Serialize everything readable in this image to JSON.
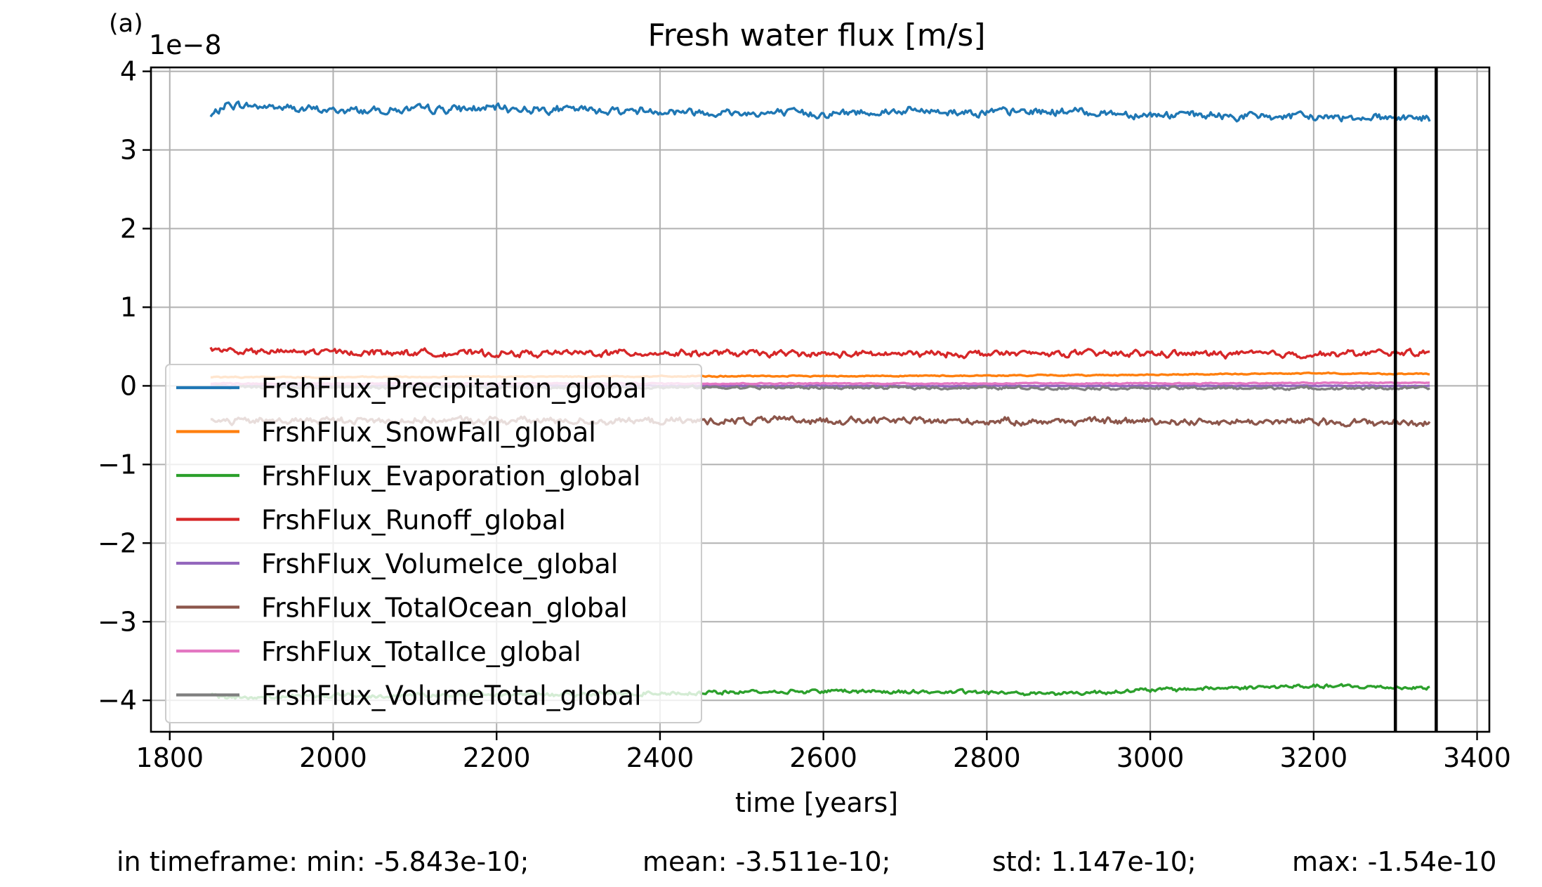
{
  "panel_label": "(a)",
  "chart_data": {
    "type": "line",
    "title": "Fresh water flux [m/s]",
    "xlabel": "time [years]",
    "ylabel": "",
    "y_offset_label": "1e−8",
    "y_scale_exponent": -8,
    "xlim": [
      1777,
      3415
    ],
    "ylim": [
      -4.4,
      4.05
    ],
    "xticks": [
      1800,
      2000,
      2200,
      2400,
      2600,
      2800,
      3000,
      3200,
      3400
    ],
    "yticks": [
      -4,
      -3,
      -2,
      -1,
      0,
      1,
      2,
      3,
      4
    ],
    "ytick_labels": [
      "−4",
      "−3",
      "−2",
      "−1",
      "0",
      "1",
      "2",
      "3",
      "4"
    ],
    "grid": true,
    "legend_position": "center-left",
    "vertical_lines": [
      3300,
      3350
    ],
    "vertical_line_color": "#000000",
    "x_start": 1850,
    "x_end": 3342,
    "series": [
      {
        "name": "FrshFlux_Precipitation_global",
        "color": "#1f77b4",
        "x": [
          1850,
          1870,
          1900,
          1950,
          2000,
          2100,
          2200,
          2300,
          2400,
          2500,
          2600,
          2700,
          2800,
          2900,
          3000,
          3100,
          3200,
          3300,
          3342
        ],
        "y": [
          3.42,
          3.58,
          3.56,
          3.53,
          3.5,
          3.51,
          3.53,
          3.51,
          3.5,
          3.47,
          3.46,
          3.5,
          3.48,
          3.49,
          3.45,
          3.43,
          3.42,
          3.42,
          3.4
        ],
        "noise": 0.035
      },
      {
        "name": "FrshFlux_SnowFall_global",
        "color": "#ff7f0e",
        "x": [
          1850,
          2000,
          2400,
          2800,
          3000,
          3200,
          3342
        ],
        "y": [
          0.11,
          0.11,
          0.12,
          0.13,
          0.14,
          0.16,
          0.15
        ],
        "noise": 0.005
      },
      {
        "name": "FrshFlux_Evaporation_global",
        "color": "#2ca02c",
        "x": [
          1850,
          1870,
          2000,
          2200,
          2400,
          2600,
          2800,
          2900,
          3000,
          3100,
          3200,
          3342
        ],
        "y": [
          -3.92,
          -3.97,
          -3.94,
          -3.93,
          -3.91,
          -3.88,
          -3.9,
          -3.91,
          -3.87,
          -3.84,
          -3.82,
          -3.84
        ],
        "noise": 0.018
      },
      {
        "name": "FrshFlux_Runoff_global",
        "color": "#d62728",
        "x": [
          1850,
          1900,
          2000,
          2200,
          2400,
          2600,
          2800,
          3000,
          3200,
          3342
        ],
        "y": [
          0.47,
          0.43,
          0.43,
          0.41,
          0.42,
          0.4,
          0.41,
          0.41,
          0.4,
          0.43
        ],
        "noise": 0.028
      },
      {
        "name": "FrshFlux_VolumeIce_global",
        "color": "#9467bd",
        "x": [
          1850,
          3342
        ],
        "y": [
          0.0,
          0.0
        ],
        "noise": 0.004
      },
      {
        "name": "FrshFlux_TotalOcean_global",
        "color": "#8c564b",
        "x": [
          1850,
          2000,
          2200,
          2400,
          2600,
          2800,
          3000,
          3200,
          3342
        ],
        "y": [
          -0.45,
          -0.44,
          -0.44,
          -0.45,
          -0.44,
          -0.45,
          -0.45,
          -0.46,
          -0.47
        ],
        "noise": 0.03
      },
      {
        "name": "FrshFlux_TotalIce_global",
        "color": "#e377c2",
        "x": [
          1850,
          2400,
          3000,
          3342
        ],
        "y": [
          0.03,
          0.03,
          0.03,
          0.04
        ],
        "noise": 0.005
      },
      {
        "name": "FrshFlux_VolumeTotal_global",
        "color": "#7f7f7f",
        "x": [
          1850,
          2400,
          3000,
          3342
        ],
        "y": [
          -0.02,
          -0.02,
          -0.03,
          -0.03
        ],
        "noise": 0.012
      }
    ]
  },
  "stats": {
    "min": "in timeframe: min: -5.843e-10;",
    "mean": "mean: -3.511e-10;",
    "std": "std: 1.147e-10;",
    "max": "max: -1.54e-10"
  }
}
